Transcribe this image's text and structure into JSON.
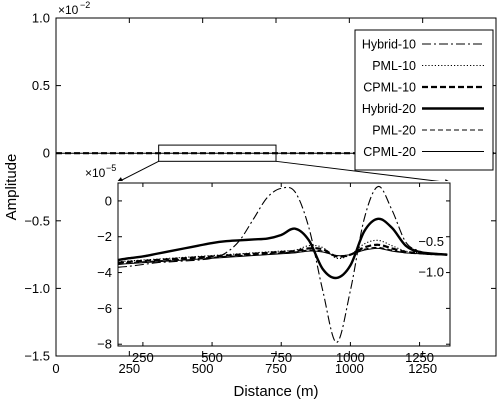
{
  "chart_data": {
    "type": "line",
    "main": {
      "xlabel": "Distance (m)",
      "ylabel": "Amplitude",
      "xlim": [
        0,
        1500
      ],
      "ylim": [
        -1.5,
        1.0
      ],
      "scale_label": "×10",
      "scale_exp": "−2",
      "xticks": [
        0,
        250,
        500,
        750,
        1000,
        1250
      ],
      "xtick_labels": [
        "0",
        "250",
        "500",
        "750",
        "1000",
        "1250"
      ],
      "yticks": [
        1.0,
        0.5,
        0,
        -0.5,
        -1.0,
        -1.5
      ],
      "ytick_labels": [
        "1.0",
        "0.5",
        "0",
        "−0.5",
        "−1.0",
        "−1.5"
      ],
      "zoom_box_x": [
        350,
        750
      ],
      "zoom_box_y": [
        -0.06,
        0.06
      ]
    },
    "legend": {
      "placement": "top-right",
      "entries": [
        {
          "name": "Hybrid-10",
          "style": "dashdot",
          "width": 1.1
        },
        {
          "name": "PML-10",
          "style": "dotted",
          "width": 1.1
        },
        {
          "name": "CPML-10",
          "style": "dashed",
          "width": 2.2
        },
        {
          "name": "Hybrid-20",
          "style": "solid",
          "width": 2.4
        },
        {
          "name": "PML-20",
          "style": "dashed-thin",
          "width": 1.1
        },
        {
          "name": "CPML-20",
          "style": "solid-thin",
          "width": 1.0
        }
      ]
    },
    "inset": {
      "xlim": [
        160,
        1360
      ],
      "ylim": [
        -8.1,
        1.0
      ],
      "scale_label": "×10",
      "scale_exp": "−5",
      "xticks": [
        250,
        500,
        750,
        1000,
        1250
      ],
      "xtick_labels": [
        "250",
        "500",
        "750",
        "1000",
        "1250"
      ],
      "yticks": [
        0,
        -2,
        -4,
        -6,
        -8
      ],
      "ytick_labels": [
        "0",
        "−2",
        "−4",
        "−6",
        "−8"
      ],
      "right_yticks": [
        -0.5,
        -1.0
      ],
      "right_ytick_labels": [
        "−0.5",
        "−1.0"
      ],
      "x": [
        160,
        200,
        250,
        300,
        350,
        400,
        450,
        500,
        550,
        600,
        650,
        700,
        750,
        800,
        850,
        900,
        950,
        1000,
        1050,
        1100,
        1150,
        1200,
        1250,
        1300,
        1350
      ],
      "series": [
        {
          "name": "Hybrid-10",
          "values": [
            -3.7,
            -3.65,
            -3.55,
            -3.45,
            -3.4,
            -3.35,
            -3.3,
            -3.2,
            -2.9,
            -2.2,
            -1.0,
            0.2,
            0.7,
            0.5,
            -1.5,
            -5.0,
            -7.9,
            -5.0,
            -1.0,
            0.8,
            -0.5,
            -2.3,
            -2.8,
            -2.95,
            -3.0
          ]
        },
        {
          "name": "PML-10",
          "values": [
            -3.4,
            -3.35,
            -3.3,
            -3.25,
            -3.2,
            -3.15,
            -3.1,
            -3.05,
            -3.0,
            -2.95,
            -2.9,
            -2.85,
            -2.8,
            -2.75,
            -2.5,
            -2.6,
            -3.2,
            -3.0,
            -2.4,
            -2.2,
            -2.5,
            -2.8,
            -2.9,
            -2.95,
            -3.0
          ]
        },
        {
          "name": "CPML-10",
          "values": [
            -3.45,
            -3.4,
            -3.35,
            -3.3,
            -3.25,
            -3.2,
            -3.15,
            -3.1,
            -3.05,
            -3.0,
            -2.95,
            -2.9,
            -2.85,
            -2.8,
            -2.65,
            -2.7,
            -3.1,
            -3.0,
            -2.6,
            -2.45,
            -2.65,
            -2.85,
            -2.9,
            -2.95,
            -3.0
          ]
        },
        {
          "name": "Hybrid-20",
          "values": [
            -3.3,
            -3.2,
            -3.1,
            -2.95,
            -2.8,
            -2.65,
            -2.5,
            -2.35,
            -2.25,
            -2.2,
            -2.15,
            -2.1,
            -1.9,
            -1.55,
            -2.2,
            -3.8,
            -4.3,
            -3.6,
            -1.7,
            -1.0,
            -1.5,
            -2.5,
            -2.85,
            -2.95,
            -3.0
          ]
        },
        {
          "name": "PML-20",
          "values": [
            -3.5,
            -3.45,
            -3.4,
            -3.35,
            -3.3,
            -3.25,
            -3.2,
            -3.15,
            -3.1,
            -3.05,
            -3.0,
            -2.95,
            -2.9,
            -2.85,
            -2.75,
            -2.8,
            -3.05,
            -3.0,
            -2.7,
            -2.6,
            -2.75,
            -2.9,
            -2.95,
            -3.0,
            -3.0
          ]
        },
        {
          "name": "CPML-20",
          "values": [
            -3.55,
            -3.5,
            -3.45,
            -3.4,
            -3.35,
            -3.3,
            -3.25,
            -3.2,
            -3.15,
            -3.1,
            -3.05,
            -3.0,
            -2.95,
            -2.9,
            -2.8,
            -2.85,
            -3.05,
            -3.0,
            -2.75,
            -2.65,
            -2.8,
            -2.9,
            -2.95,
            -3.0,
            -3.0
          ]
        }
      ]
    }
  }
}
